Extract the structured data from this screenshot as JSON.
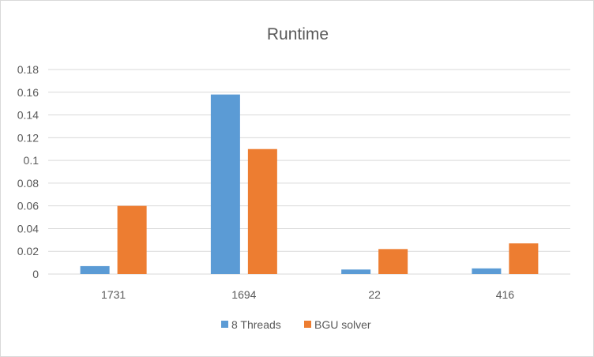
{
  "chart_data": {
    "type": "bar",
    "title": "Runtime",
    "xlabel": "",
    "ylabel": "",
    "categories": [
      "1731",
      "1694",
      "22",
      "416"
    ],
    "series": [
      {
        "name": "8 Threads",
        "values": [
          0.007,
          0.158,
          0.004,
          0.005
        ],
        "color": "#5b9bd5"
      },
      {
        "name": "BGU solver",
        "values": [
          0.06,
          0.11,
          0.022,
          0.027
        ],
        "color": "#ed7d31"
      }
    ],
    "ylim": [
      0,
      0.18
    ],
    "yticks": [
      "0",
      "0.02",
      "0.04",
      "0.06",
      "0.08",
      "0.1",
      "0.12",
      "0.14",
      "0.16",
      "0.18"
    ],
    "grid": true,
    "legend_position": "bottom"
  }
}
